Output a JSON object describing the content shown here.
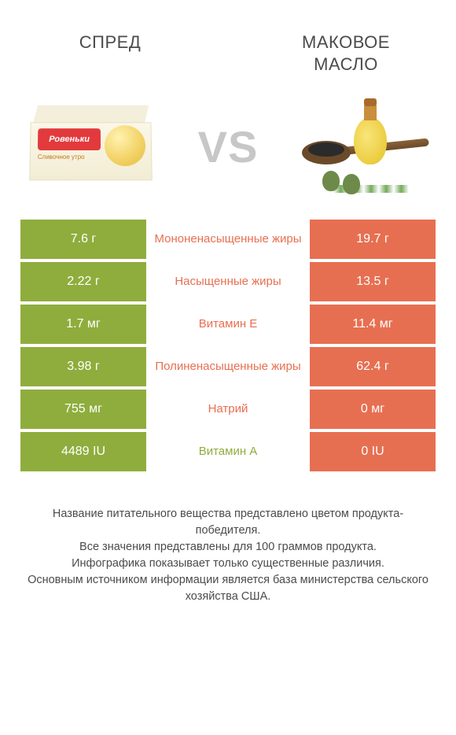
{
  "colors": {
    "left": "#8fad3d",
    "right": "#e76f51",
    "text": "#4b4b4b",
    "vs": "#c7c7c7",
    "white": "#ffffff"
  },
  "titles": {
    "left": "СПРЕД",
    "right": "МАКОВОЕ МАСЛО"
  },
  "vs": "VS",
  "product_left": {
    "logo": "Ровеньки",
    "sub": "Сливочное утро"
  },
  "rows": [
    {
      "left": "7.6 г",
      "label": "Мононенасыщенные жиры",
      "right": "19.7 г",
      "winner": "right"
    },
    {
      "left": "2.22 г",
      "label": "Насыщенные жиры",
      "right": "13.5 г",
      "winner": "right"
    },
    {
      "left": "1.7 мг",
      "label": "Витамин E",
      "right": "11.4 мг",
      "winner": "right"
    },
    {
      "left": "3.98 г",
      "label": "Полиненасыщенные жиры",
      "right": "62.4 г",
      "winner": "right"
    },
    {
      "left": "755 мг",
      "label": "Натрий",
      "right": "0 мг",
      "winner": "right"
    },
    {
      "left": "4489 IU",
      "label": "Витамин A",
      "right": "0 IU",
      "winner": "left"
    }
  ],
  "footer": [
    "Название питательного вещества представлено цветом продукта-победителя.",
    "Все значения представлены для 100 граммов продукта.",
    "Инфографика показывает только существенные различия.",
    "Основным источником информации является база министерства сельского хозяйства США."
  ]
}
